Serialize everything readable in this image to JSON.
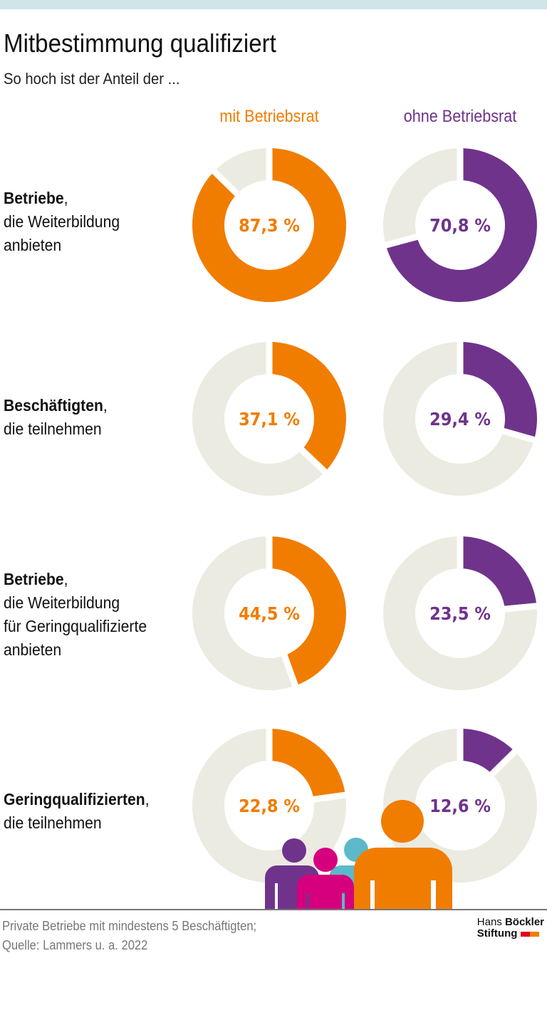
{
  "title": "Mitbestimmung qualifiziert",
  "subtitle": "So hoch ist der Anteil der ...",
  "chart_data": {
    "type": "pie",
    "variant": "donut",
    "columns": [
      {
        "name": "mit Betriebsrat",
        "color": "#f07d00"
      },
      {
        "name": "ohne Betriebsrat",
        "color": "#6f338c"
      }
    ],
    "rows": [
      {
        "label_bold": "Betriebe",
        "label_rest": [
          ",",
          "die Weiterbildung",
          "anbieten"
        ],
        "values": [
          87.3,
          70.8
        ],
        "value_labels": [
          "87,3 %",
          "70,8 %"
        ]
      },
      {
        "label_bold": "Beschäftigten",
        "label_rest": [
          ",",
          "die teilnehmen"
        ],
        "values": [
          37.1,
          29.4
        ],
        "value_labels": [
          "37,1 %",
          "29,4 %"
        ]
      },
      {
        "label_bold": "Betriebe",
        "label_rest": [
          ",",
          "die Weiterbildung",
          "für Geringqualifizierte",
          "anbieten"
        ],
        "values": [
          44.5,
          23.5
        ],
        "value_labels": [
          "44,5 %",
          "23,5 %"
        ]
      },
      {
        "label_bold": "Geringqualifizierten",
        "label_rest": [
          ",",
          "die teilnehmen"
        ],
        "values": [
          22.8,
          12.6
        ],
        "value_labels": [
          "22,8 %",
          "12,6 %"
        ]
      }
    ],
    "remainder_color": "#ecebe1"
  },
  "footer": {
    "note": "Private Betriebe mit mindestens 5 Beschäftigten;",
    "source": "Quelle: Lammers u. a. 2022"
  },
  "logo": {
    "line1_light": "Hans",
    "line1_bold": "Böckler",
    "line2": "Stiftung",
    "colors": [
      "#e3001b",
      "#f07d00"
    ]
  },
  "illustration_colors": [
    "#6f338c",
    "#d6007e",
    "#5bb9c9",
    "#f07d00"
  ]
}
